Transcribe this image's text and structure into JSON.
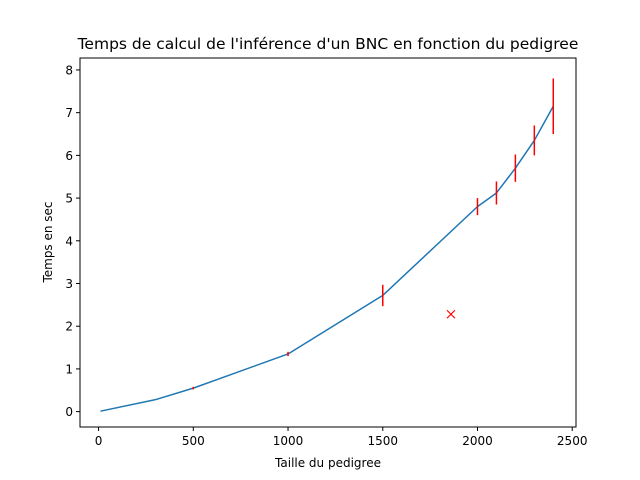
{
  "chart_data": {
    "type": "line",
    "title": "Temps de calcul de l'inférence d'un BNC en fonction du pedigree",
    "xlabel": "Taille du pedigree",
    "ylabel": "Temps en sec",
    "xlim": [
      -98,
      2520
    ],
    "ylim": [
      -0.36,
      8.28
    ],
    "xticks": [
      0,
      500,
      1000,
      1500,
      2000,
      2500
    ],
    "yticks": [
      0,
      1,
      2,
      3,
      4,
      5,
      6,
      7,
      8
    ],
    "grid": false,
    "series": [
      {
        "type": "line",
        "color": "#1f77b4",
        "x": [
          10,
          300,
          500,
          1000,
          1500,
          2000,
          2100,
          2200,
          2300,
          2400
        ],
        "y": [
          0.01,
          0.28,
          0.55,
          1.35,
          2.72,
          4.8,
          5.12,
          5.7,
          6.35,
          7.15
        ]
      },
      {
        "type": "errorbar",
        "color": "#ff0000",
        "x": [
          500,
          1000,
          1500,
          2000,
          2100,
          2200,
          2300,
          2400
        ],
        "y": [
          0.55,
          1.35,
          2.72,
          4.8,
          5.12,
          5.7,
          6.35,
          7.15
        ],
        "err": [
          0.03,
          0.05,
          0.25,
          0.2,
          0.27,
          0.32,
          0.35,
          0.65
        ]
      },
      {
        "type": "scatter",
        "color": "#ff0000",
        "marker": "x",
        "x": [
          1860
        ],
        "y": [
          2.28
        ]
      }
    ]
  }
}
